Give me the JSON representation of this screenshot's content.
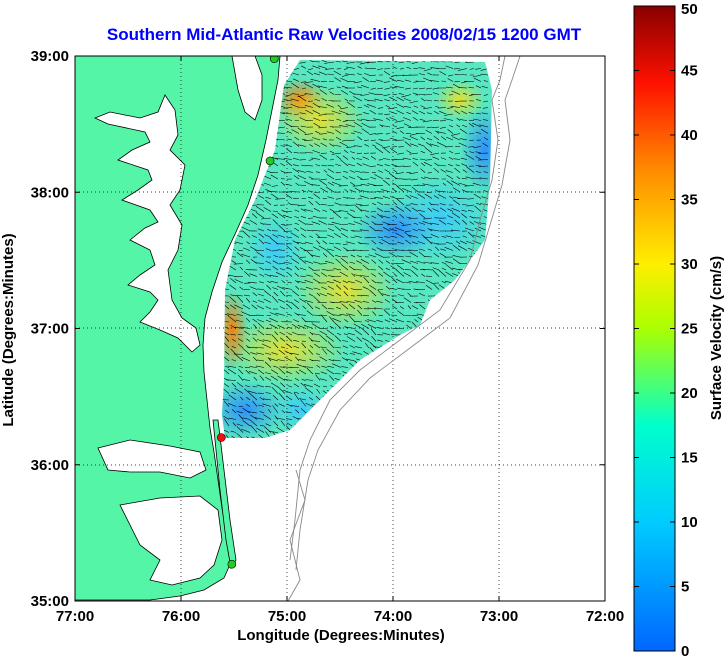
{
  "chart_data": {
    "type": "heatmap",
    "title": "Southern Mid-Atlantic Raw Velocities 2008/02/15 1200 GMT",
    "xlabel": "Longitude (Degrees:Minutes)",
    "ylabel": "Latitude (Degrees:Minutes)",
    "xlim": [
      -77,
      -72
    ],
    "ylim": [
      35,
      39
    ],
    "x_ticks": [
      "77:00",
      "76:00",
      "75:00",
      "74:00",
      "73:00",
      "72:00"
    ],
    "x_tick_values": [
      -77,
      -76,
      -75,
      -74,
      -73,
      -72
    ],
    "y_ticks": [
      "35:00",
      "36:00",
      "37:00",
      "38:00",
      "39:00"
    ],
    "y_tick_values": [
      35,
      36,
      37,
      38,
      39
    ],
    "grid": "dotted",
    "colorbar": {
      "label": "Surface Velocity (cm/s)",
      "range": [
        0,
        50
      ],
      "ticks": [
        0,
        5,
        10,
        15,
        20,
        25,
        30,
        35,
        40,
        45,
        50
      ],
      "position": "right"
    },
    "stations": [
      {
        "lon": -75.12,
        "lat": 38.98,
        "color": "green"
      },
      {
        "lon": -75.16,
        "lat": 38.23,
        "color": "green"
      },
      {
        "lon": -75.62,
        "lat": 36.2,
        "color": "red"
      },
      {
        "lon": -75.52,
        "lat": 35.27,
        "color": "green"
      }
    ]
  },
  "colors": {
    "title": "#0000ff",
    "land": "#55f5a8",
    "coastline": "#000000",
    "bathymetry": "#888888",
    "grid": "#000000",
    "station_green": "#22cc22",
    "station_red": "#ee1111"
  }
}
